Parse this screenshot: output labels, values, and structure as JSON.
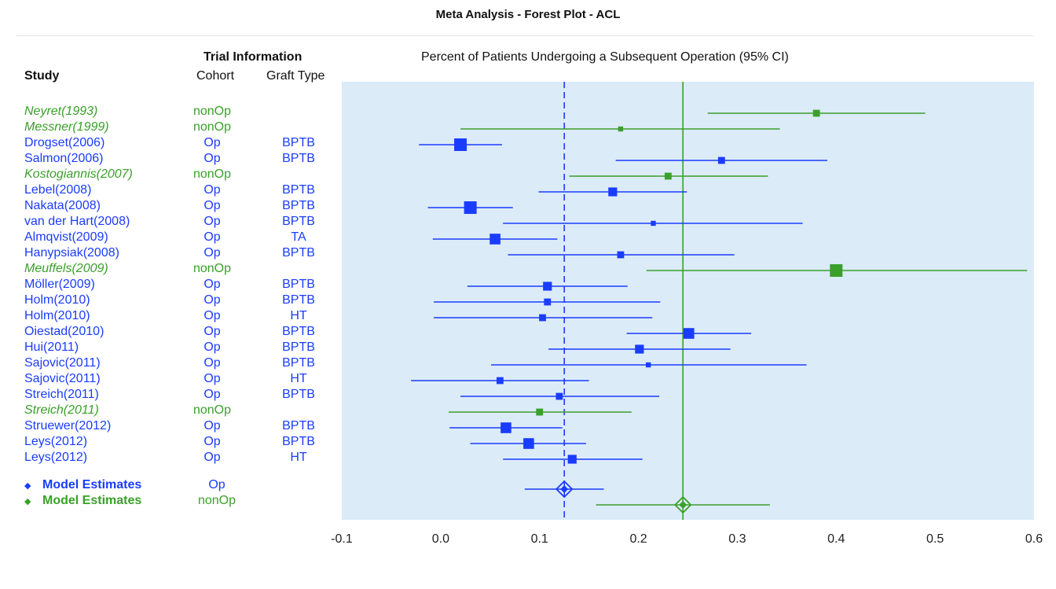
{
  "title": "Meta Analysis - Forest Plot - ACL",
  "headers": {
    "trial_information": "Trial Information",
    "study": "Study",
    "cohort": "Cohort",
    "graft_type": "Graft Type",
    "plot_title": "Percent of Patients Undergoing a Subsequent Operation (95% CI)"
  },
  "colors": {
    "op": "#1a3cff",
    "nonop": "#3aa02a",
    "panel": "#dcebf8"
  },
  "chart_data": {
    "type": "forest",
    "title": "Meta Analysis - Forest Plot - ACL",
    "xlabel": "Percent of Patients Undergoing a Subsequent Operation (95% CI)",
    "xlim": [
      -0.1,
      0.6
    ],
    "xticks": [
      -0.1,
      0.0,
      0.1,
      0.2,
      0.3,
      0.4,
      0.5,
      0.6
    ],
    "xtick_labels": [
      "-0.1",
      "0.0",
      "0.1",
      "0.2",
      "0.3",
      "0.4",
      "0.5",
      "0.6"
    ],
    "reference_lines": [
      {
        "group": "Op",
        "value": 0.125,
        "style": "dashed"
      },
      {
        "group": "nonOp",
        "value": 0.245,
        "style": "solid"
      }
    ],
    "studies": [
      {
        "study": "Neyret(1993)",
        "cohort": "nonOp",
        "graft": "",
        "est": 0.38,
        "lo": 0.27,
        "hi": 0.49,
        "weight": 2
      },
      {
        "study": "Messner(1999)",
        "cohort": "nonOp",
        "graft": "",
        "est": 0.182,
        "lo": 0.02,
        "hi": 0.343,
        "weight": 1
      },
      {
        "study": "Drogset(2006)",
        "cohort": "Op",
        "graft": "BPTB",
        "est": 0.02,
        "lo": -0.022,
        "hi": 0.062,
        "weight": 5
      },
      {
        "study": "Salmon(2006)",
        "cohort": "Op",
        "graft": "BPTB",
        "est": 0.284,
        "lo": 0.177,
        "hi": 0.391,
        "weight": 2
      },
      {
        "study": "Kostogiannis(2007)",
        "cohort": "nonOp",
        "graft": "",
        "est": 0.23,
        "lo": 0.13,
        "hi": 0.331,
        "weight": 2
      },
      {
        "study": "Lebel(2008)",
        "cohort": "Op",
        "graft": "BPTB",
        "est": 0.174,
        "lo": 0.099,
        "hi": 0.249,
        "weight": 3
      },
      {
        "study": "Nakata(2008)",
        "cohort": "Op",
        "graft": "BPTB",
        "est": 0.03,
        "lo": -0.013,
        "hi": 0.073,
        "weight": 5
      },
      {
        "study": "van der Hart(2008)",
        "cohort": "Op",
        "graft": "BPTB",
        "est": 0.215,
        "lo": 0.063,
        "hi": 0.366,
        "weight": 1
      },
      {
        "study": "Almqvist(2009)",
        "cohort": "Op",
        "graft": "TA",
        "est": 0.055,
        "lo": -0.008,
        "hi": 0.118,
        "weight": 4
      },
      {
        "study": "Hanypsiak(2008)",
        "cohort": "Op",
        "graft": "BPTB",
        "est": 0.182,
        "lo": 0.068,
        "hi": 0.297,
        "weight": 2
      },
      {
        "study": "Meuffels(2009)",
        "cohort": "nonOp",
        "graft": "",
        "est": 0.4,
        "lo": 0.208,
        "hi": 0.593,
        "weight": 5
      },
      {
        "study": "Möller(2009)",
        "cohort": "Op",
        "graft": "BPTB",
        "est": 0.108,
        "lo": 0.027,
        "hi": 0.189,
        "weight": 3
      },
      {
        "study": "Holm(2010)",
        "cohort": "Op",
        "graft": "BPTB",
        "est": 0.108,
        "lo": -0.007,
        "hi": 0.222,
        "weight": 2
      },
      {
        "study": "Holm(2010)",
        "cohort": "Op",
        "graft": "HT",
        "est": 0.103,
        "lo": -0.007,
        "hi": 0.214,
        "weight": 2
      },
      {
        "study": "Oiestad(2010)",
        "cohort": "Op",
        "graft": "BPTB",
        "est": 0.251,
        "lo": 0.188,
        "hi": 0.314,
        "weight": 4
      },
      {
        "study": "Hui(2011)",
        "cohort": "Op",
        "graft": "BPTB",
        "est": 0.201,
        "lo": 0.109,
        "hi": 0.293,
        "weight": 3
      },
      {
        "study": "Sajovic(2011)",
        "cohort": "Op",
        "graft": "BPTB",
        "est": 0.21,
        "lo": 0.051,
        "hi": 0.37,
        "weight": 1
      },
      {
        "study": "Sajovic(2011)",
        "cohort": "Op",
        "graft": "HT",
        "est": 0.06,
        "lo": -0.03,
        "hi": 0.15,
        "weight": 2
      },
      {
        "study": "Streich(2011)",
        "cohort": "Op",
        "graft": "BPTB",
        "est": 0.12,
        "lo": 0.02,
        "hi": 0.221,
        "weight": 2
      },
      {
        "study": "Streich(2011)",
        "cohort": "nonOp",
        "graft": "",
        "est": 0.1,
        "lo": 0.008,
        "hi": 0.193,
        "weight": 2
      },
      {
        "study": "Struewer(2012)",
        "cohort": "Op",
        "graft": "BPTB",
        "est": 0.066,
        "lo": 0.009,
        "hi": 0.123,
        "weight": 4
      },
      {
        "study": "Leys(2012)",
        "cohort": "Op",
        "graft": "BPTB",
        "est": 0.089,
        "lo": 0.03,
        "hi": 0.147,
        "weight": 4
      },
      {
        "study": "Leys(2012)",
        "cohort": "Op",
        "graft": "HT",
        "est": 0.133,
        "lo": 0.063,
        "hi": 0.204,
        "weight": 3
      }
    ],
    "model_estimates": [
      {
        "label": "Model Estimates",
        "cohort": "Op",
        "est": 0.125,
        "lo": 0.085,
        "hi": 0.165
      },
      {
        "label": "Model Estimates",
        "cohort": "nonOp",
        "est": 0.245,
        "lo": 0.157,
        "hi": 0.333
      }
    ]
  }
}
